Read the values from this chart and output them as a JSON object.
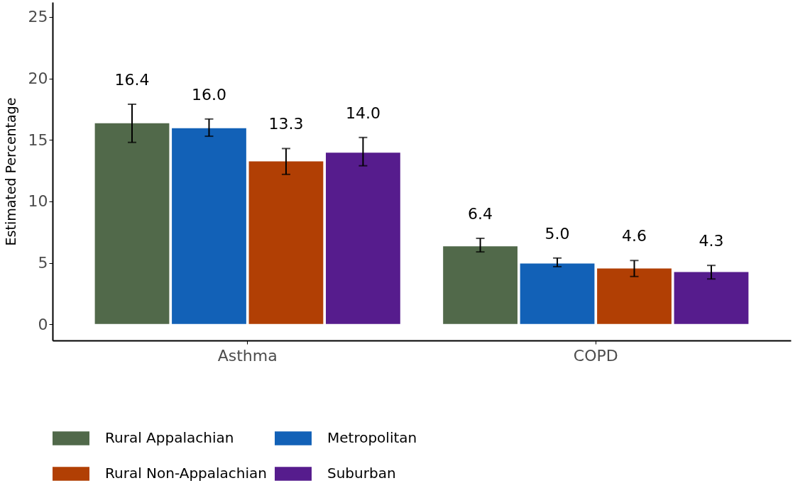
{
  "chart_data": {
    "type": "bar",
    "ylabel": "Estimated Percentage",
    "categories": [
      "Asthma",
      "COPD"
    ],
    "series": [
      {
        "name": "Rural Appalachian",
        "color": "#51694a",
        "values": [
          16.4,
          6.4
        ],
        "value_labels": [
          "16.4",
          "6.4"
        ],
        "errors": [
          [
            14.8,
            17.9
          ],
          [
            5.9,
            7.0
          ]
        ]
      },
      {
        "name": "Metropolitan",
        "color": "#1261b7",
        "values": [
          16.0,
          5.0
        ],
        "value_labels": [
          "16.0",
          "5.0"
        ],
        "errors": [
          [
            15.3,
            16.7
          ],
          [
            4.7,
            5.4
          ]
        ]
      },
      {
        "name": "Rural Non-Appalachian",
        "color": "#b13f04",
        "values": [
          13.3,
          4.6
        ],
        "value_labels": [
          "13.3",
          "4.6"
        ],
        "errors": [
          [
            12.2,
            14.3
          ],
          [
            3.9,
            5.2
          ]
        ]
      },
      {
        "name": "Suburban",
        "color": "#561c8d",
        "values": [
          14.0,
          4.3
        ],
        "value_labels": [
          "14.0",
          "4.3"
        ],
        "errors": [
          [
            12.9,
            15.2
          ],
          [
            3.7,
            4.8
          ]
        ]
      }
    ],
    "ylim": [
      -1.3,
      26.2
    ],
    "yticks": [
      0,
      5,
      10,
      15,
      20,
      25
    ],
    "grid": false,
    "legend": "bottom"
  }
}
